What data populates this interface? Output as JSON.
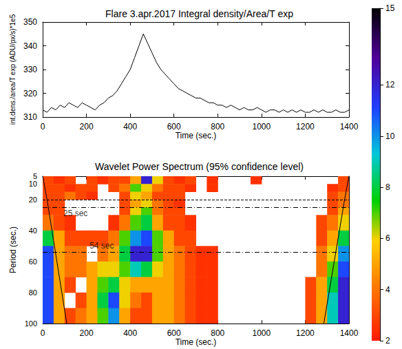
{
  "chart_data": [
    {
      "type": "line",
      "title": "Flare 3.apr.2017 Integral density/Area/T exp",
      "x_label": "Time (sec.)",
      "y_label": "int.dens./area/T exp (ADU/px/s)*1e5",
      "x": [
        0,
        20,
        40,
        60,
        80,
        100,
        120,
        140,
        160,
        180,
        200,
        220,
        240,
        260,
        280,
        300,
        320,
        340,
        360,
        380,
        400,
        420,
        440,
        460,
        480,
        500,
        520,
        540,
        560,
        580,
        600,
        620,
        640,
        660,
        680,
        700,
        720,
        740,
        760,
        780,
        800,
        820,
        840,
        860,
        880,
        900,
        920,
        940,
        960,
        980,
        1000,
        1020,
        1040,
        1060,
        1080,
        1100,
        1120,
        1140,
        1160,
        1180,
        1200,
        1220,
        1240,
        1260,
        1280,
        1300,
        1320,
        1340,
        1360,
        1380,
        1400
      ],
      "values": [
        313,
        312,
        314,
        313,
        315,
        314,
        316,
        315,
        314,
        316,
        315,
        314,
        313,
        315,
        316,
        318,
        319,
        321,
        324,
        327,
        330,
        335,
        340,
        345,
        341,
        337,
        333,
        330,
        328,
        326,
        324,
        322,
        321,
        320,
        319,
        318,
        318,
        317,
        316,
        316,
        315,
        315,
        314,
        315,
        314,
        313,
        314,
        313,
        313,
        314,
        313,
        312,
        313,
        313,
        312,
        313,
        312,
        313,
        312,
        313,
        312,
        312,
        313,
        312,
        313,
        312,
        312,
        313,
        312,
        312,
        313
      ],
      "color": "#000000",
      "xlim": [
        0,
        1400
      ],
      "xticks": [
        0,
        200,
        400,
        600,
        800,
        1000,
        1200,
        1400
      ],
      "ylim": [
        310,
        350
      ],
      "yticks": [
        310,
        320,
        330,
        340,
        350
      ],
      "grid": false
    },
    {
      "type": "wavelet",
      "title": "Wavelet Power Spectrum (95% confidence level)",
      "x_label": "Time (sec.)",
      "y_label": "Period (sec.)",
      "time_bins": [
        0,
        50,
        100,
        150,
        200,
        250,
        300,
        350,
        400,
        450,
        500,
        550,
        600,
        650,
        700,
        750,
        800,
        850,
        900,
        950,
        1000,
        1050,
        1100,
        1150,
        1200,
        1250,
        1300,
        1350,
        1400
      ],
      "period_bins": [
        5,
        10,
        15,
        20,
        25,
        30,
        40,
        50,
        60,
        70,
        80,
        90,
        100
      ],
      "power": [
        [
          3,
          2.5,
          3,
          null,
          3,
          2.5,
          3,
          3,
          5,
          12,
          6,
          3,
          2.5,
          3,
          null,
          2.5,
          null,
          null,
          null,
          2.5,
          null,
          null,
          null,
          null,
          null,
          null,
          null,
          3
        ],
        [
          3,
          3,
          2.5,
          3,
          3,
          null,
          3,
          4,
          7,
          6,
          4,
          3,
          3,
          2.5,
          null,
          2.5,
          null,
          null,
          null,
          null,
          null,
          null,
          null,
          null,
          null,
          null,
          2.5,
          3
        ],
        [
          3,
          3,
          4,
          3,
          2.5,
          null,
          null,
          3,
          6,
          5,
          3,
          3,
          3,
          null,
          null,
          null,
          null,
          null,
          null,
          null,
          null,
          null,
          null,
          null,
          null,
          null,
          3,
          4
        ],
        [
          3,
          3,
          null,
          null,
          null,
          null,
          null,
          3,
          5,
          6,
          4,
          3,
          2.5,
          null,
          null,
          null,
          null,
          null,
          null,
          null,
          null,
          null,
          null,
          null,
          null,
          null,
          3,
          4
        ],
        [
          3,
          3,
          null,
          null,
          null,
          null,
          null,
          3,
          6,
          7,
          4,
          3,
          3,
          null,
          null,
          null,
          null,
          null,
          null,
          null,
          null,
          null,
          null,
          null,
          null,
          null,
          3,
          5
        ],
        [
          4,
          3,
          2.5,
          null,
          null,
          null,
          2.5,
          4,
          7,
          8,
          5,
          3,
          3,
          2.5,
          null,
          null,
          null,
          null,
          null,
          null,
          null,
          null,
          null,
          null,
          null,
          3,
          4,
          6
        ],
        [
          8,
          5,
          3,
          3,
          3,
          3,
          4,
          7,
          10,
          11,
          7,
          5,
          3,
          3,
          null,
          null,
          null,
          null,
          null,
          null,
          null,
          null,
          null,
          null,
          null,
          3,
          5,
          8
        ],
        [
          11,
          5,
          4,
          4,
          null,
          4,
          5,
          8,
          12,
          12,
          7,
          5,
          4,
          3,
          2.5,
          2.5,
          null,
          null,
          null,
          null,
          null,
          null,
          null,
          null,
          null,
          4,
          6,
          10
        ],
        [
          11,
          5,
          4,
          4,
          5,
          6,
          6,
          7,
          9,
          8,
          6,
          5,
          4,
          3,
          2.5,
          2.5,
          null,
          null,
          null,
          null,
          null,
          null,
          null,
          null,
          null,
          4,
          7,
          11
        ],
        [
          11,
          5,
          3,
          null,
          5,
          7,
          8,
          6,
          5,
          5,
          5,
          5,
          4,
          3,
          2.5,
          2.5,
          null,
          null,
          null,
          null,
          null,
          null,
          null,
          null,
          3,
          5,
          8,
          12
        ],
        [
          11,
          5,
          null,
          3,
          5,
          8,
          11,
          6,
          4,
          3,
          5,
          5,
          4,
          3,
          2.5,
          2.5,
          null,
          null,
          null,
          null,
          null,
          null,
          null,
          null,
          3,
          5,
          9,
          12
        ],
        [
          11,
          5,
          3,
          4,
          5,
          7,
          10,
          5,
          3,
          3,
          5,
          5,
          4,
          3,
          2.5,
          2.5,
          null,
          null,
          null,
          null,
          null,
          null,
          null,
          null,
          3,
          5,
          9,
          12
        ]
      ],
      "xlim": [
        0,
        1400
      ],
      "xticks": [
        0,
        200,
        400,
        600,
        800,
        1000,
        1200,
        1400
      ],
      "ylim": [
        5,
        100
      ],
      "yticks": [
        5,
        10,
        20,
        40,
        60,
        80,
        100
      ],
      "colorbar": {
        "range": [
          2,
          15
        ],
        "ticks": [
          2,
          4,
          6,
          8,
          10,
          12,
          15
        ]
      },
      "cone_of_influence": [
        {
          "x": [
            0,
            20,
            110
          ],
          "period": [
            5,
            20,
            100
          ]
        },
        {
          "x": [
            1400,
            1380,
            1285
          ],
          "period": [
            5,
            20,
            100
          ]
        }
      ],
      "annotations": [
        {
          "period": 20,
          "line_style": "dashed"
        },
        {
          "period": 25,
          "line_style": "dashdot",
          "label": "25 sec",
          "x": 150
        },
        {
          "period": 54,
          "line_style": "dashdot",
          "label": "54 sec",
          "x": 270
        }
      ],
      "grid": false
    }
  ]
}
